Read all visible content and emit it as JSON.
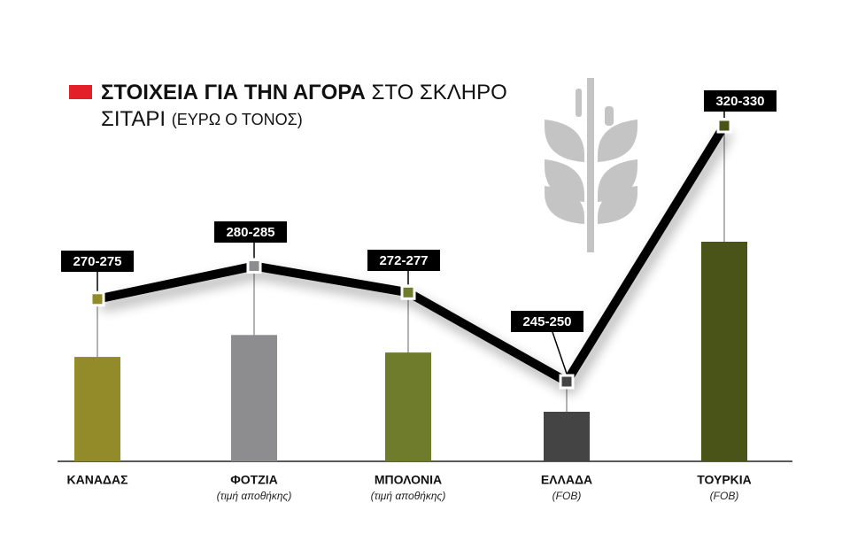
{
  "chart_data": {
    "type": "line",
    "title_bold": "ΣΤΟΙΧΕΙΑ ΓΙΑ ΤΗΝ ΑΓΟΡΑ",
    "title": "ΣΤΟ ΣΚΛΗΡΟ",
    "title_line2": "ΣΙΤΑΡΙ",
    "subtitle": "(ΕΥΡΩ Ο ΤΟΝΟΣ)",
    "categories": [
      "ΚΑΝΑΔΑΣ",
      "ΦΟΤΖΙΑ",
      "ΜΠΟΛΟΝΙΑ",
      "ΕΛΛΑΔΑ",
      "ΤΟΥΡΚΙΑ"
    ],
    "category_notes": [
      null,
      "(τιμή αποθήκης)",
      "(τιμή αποθήκης)",
      "(FOB)",
      "(FOB)"
    ],
    "values": [
      [
        270,
        275
      ],
      [
        280,
        285
      ],
      [
        272,
        277
      ],
      [
        245,
        250
      ],
      [
        320,
        330
      ]
    ],
    "value_labels": [
      "270-275",
      "280-285",
      "272-277",
      "245-250",
      "320-330"
    ],
    "colors": [
      "#938a2a",
      "#8d8d8f",
      "#6f7c2c",
      "#444444",
      "#4a5419"
    ],
    "line_color": "#000000"
  }
}
